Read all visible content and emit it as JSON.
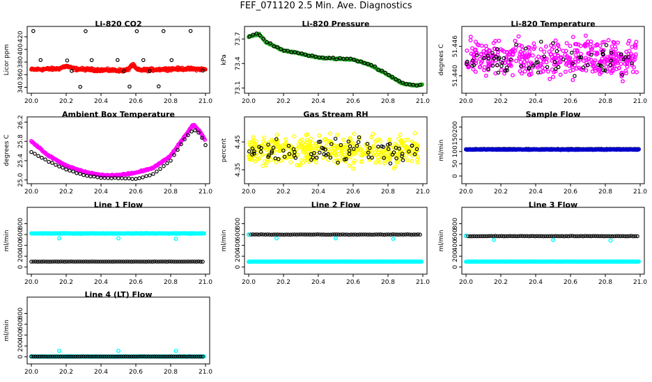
{
  "title": "FEF_071120  2.5 Min. Ave. Diagnostics",
  "x_axis": {
    "range": [
      20.0,
      21.0
    ],
    "ticks": [
      "20.0",
      "20.2",
      "20.4",
      "20.6",
      "20.8",
      "21.0"
    ]
  },
  "chart_data": [
    {
      "id": "co2",
      "type": "scatter",
      "title": "Li-820 CO2",
      "ylabel": "Licor ppm",
      "ylim": [
        335,
        432
      ],
      "yticks": [
        "340",
        "360",
        "380",
        "400",
        "420"
      ],
      "series": [
        {
          "name": "primary",
          "color": "#ff0000",
          "pattern": "band",
          "base": 368,
          "amp": 3,
          "noise": 3,
          "peaks": [
            {
              "x": 20.58,
              "h": 8,
              "w": 0.02
            },
            {
              "x": 20.2,
              "h": 4,
              "w": 0.03
            }
          ]
        },
        {
          "name": "secondary",
          "color": "#000000",
          "pattern": "levels",
          "levels": [
            429,
            383,
            366,
            341
          ],
          "step": 0.075
        }
      ]
    },
    {
      "id": "pressure",
      "type": "scatter",
      "title": "Li-820 Pressure",
      "ylabel": "kPa",
      "ylim": [
        73.07,
        73.82
      ],
      "yticks": [
        "73.1",
        "73.4",
        "73.7"
      ],
      "series": [
        {
          "name": "primary",
          "color": "#22aa22",
          "pattern": "trend",
          "knots": [
            [
              20.0,
              73.73
            ],
            [
              20.06,
              73.76
            ],
            [
              20.1,
              73.66
            ],
            [
              20.2,
              73.56
            ],
            [
              20.3,
              73.52
            ],
            [
              20.4,
              73.47
            ],
            [
              20.5,
              73.46
            ],
            [
              20.6,
              73.45
            ],
            [
              20.7,
              73.38
            ],
            [
              20.8,
              73.26
            ],
            [
              20.88,
              73.16
            ],
            [
              20.95,
              73.13
            ],
            [
              21.0,
              73.14
            ]
          ],
          "noise": 0.01
        },
        {
          "name": "secondary",
          "color": "#000000",
          "pattern": "sparse_trend",
          "step": 0.02,
          "offset": 0.015
        }
      ]
    },
    {
      "id": "licor_temp",
      "type": "scatter",
      "title": "Li-820 Temperature",
      "ylabel": "degrees C",
      "ylim": [
        51.437,
        51.4495
      ],
      "yticks": [
        "51.440",
        "51.446"
      ],
      "series": [
        {
          "name": "primary",
          "color": "#ff00ff",
          "pattern": "noise",
          "center": 51.4435,
          "spread": 0.0055,
          "count": 420
        },
        {
          "name": "secondary",
          "color": "#000000",
          "pattern": "noise",
          "center": 51.4433,
          "spread": 0.0045,
          "count": 70
        }
      ]
    },
    {
      "id": "box_temp",
      "type": "scatter",
      "title": "Ambient Box Temperature",
      "ylabel": "degrees C",
      "ylim": [
        24.98,
        26.25
      ],
      "yticks": [
        "25.0",
        "25.4",
        "25.8",
        "26.2"
      ],
      "series": [
        {
          "name": "primary",
          "color": "#ff00ff",
          "pattern": "trend",
          "knots": [
            [
              20.0,
              25.8
            ],
            [
              20.1,
              25.5
            ],
            [
              20.2,
              25.3
            ],
            [
              20.3,
              25.17
            ],
            [
              20.4,
              25.1
            ],
            [
              20.5,
              25.1
            ],
            [
              20.6,
              25.15
            ],
            [
              20.7,
              25.25
            ],
            [
              20.8,
              25.5
            ],
            [
              20.87,
              25.85
            ],
            [
              20.93,
              26.15
            ],
            [
              20.97,
              26.0
            ],
            [
              21.0,
              25.8
            ]
          ],
          "noise": 0.02
        },
        {
          "name": "secondary",
          "color": "#000000",
          "pattern": "trend",
          "knots": [
            [
              20.0,
              25.58
            ],
            [
              20.1,
              25.38
            ],
            [
              20.2,
              25.22
            ],
            [
              20.3,
              25.1
            ],
            [
              20.4,
              25.04
            ],
            [
              20.5,
              25.04
            ],
            [
              20.6,
              25.02
            ],
            [
              20.7,
              25.12
            ],
            [
              20.8,
              25.4
            ],
            [
              20.87,
              25.8
            ],
            [
              20.93,
              26.05
            ],
            [
              20.97,
              25.95
            ],
            [
              21.0,
              25.72
            ]
          ],
          "noise": 0.01,
          "step": 0.02
        }
      ]
    },
    {
      "id": "rh",
      "type": "scatter",
      "title": "Gas Stream RH",
      "ylabel": "percent",
      "ylim": [
        4.31,
        4.53
      ],
      "yticks": [
        "4.35",
        "4.45"
      ],
      "series": [
        {
          "name": "primary",
          "color": "#ffff00",
          "pattern": "noise",
          "center": 4.42,
          "spread": 0.075,
          "count": 450
        },
        {
          "name": "secondary",
          "color": "#000000",
          "pattern": "noise",
          "center": 4.42,
          "spread": 0.065,
          "count": 80
        }
      ]
    },
    {
      "id": "sample_flow",
      "type": "scatter",
      "title": "Sample Flow",
      "ylabel": "ml/min",
      "ylim": [
        -20,
        230
      ],
      "yticks": [
        "0",
        "50",
        "100",
        "150",
        "200"
      ],
      "series": [
        {
          "name": "primary",
          "color": "#000000",
          "pattern": "flat",
          "value": 110,
          "noise": 2,
          "step": 0.008
        },
        {
          "name": "secondary",
          "color": "#0000cc",
          "pattern": "flat",
          "value": 108,
          "noise": 2,
          "step": 0.004
        }
      ]
    },
    {
      "id": "line1",
      "type": "scatter",
      "title": "Line 1 Flow",
      "ylabel": "ml/min",
      "ylim": [
        -80,
        1050
      ],
      "yticks": [
        "0",
        "200",
        "400",
        "600",
        "800"
      ],
      "series": [
        {
          "name": "primary",
          "color": "#00ffff",
          "pattern": "flat",
          "value": 620,
          "noise": 8,
          "step": 0.004,
          "dips": [
            {
              "x": 20.16,
              "v": 530
            },
            {
              "x": 20.5,
              "v": 530
            },
            {
              "x": 20.83,
              "v": 520
            }
          ]
        },
        {
          "name": "secondary",
          "color": "#000000",
          "pattern": "flat",
          "value": 100,
          "noise": 3,
          "step": 0.012
        }
      ]
    },
    {
      "id": "line2",
      "type": "scatter",
      "title": "Line 2 Flow",
      "ylabel": "ml/min",
      "ylim": [
        -80,
        1050
      ],
      "yticks": [
        "0",
        "200",
        "400",
        "600",
        "800"
      ],
      "series": [
        {
          "name": "primary",
          "color": "#00ffff",
          "pattern": "flat",
          "value": 100,
          "noise": 3,
          "step": 0.004
        },
        {
          "name": "secondary",
          "color": "#000000",
          "pattern": "flat",
          "value": 600,
          "noise": 6,
          "step": 0.012
        },
        {
          "name": "tertiary",
          "color": "#00ffff",
          "pattern": "points",
          "points": [
            [
              20.0,
              600
            ],
            [
              20.16,
              530
            ],
            [
              20.5,
              530
            ],
            [
              20.83,
              520
            ]
          ]
        }
      ]
    },
    {
      "id": "line3",
      "type": "scatter",
      "title": "Line 3 Flow",
      "ylabel": "ml/min",
      "ylim": [
        -80,
        1050
      ],
      "yticks": [
        "0",
        "200",
        "400",
        "600",
        "800"
      ],
      "series": [
        {
          "name": "primary",
          "color": "#00ffff",
          "pattern": "flat",
          "value": 100,
          "noise": 3,
          "step": 0.004
        },
        {
          "name": "secondary",
          "color": "#000000",
          "pattern": "flat",
          "value": 570,
          "noise": 6,
          "step": 0.012
        },
        {
          "name": "tertiary",
          "color": "#00ffff",
          "pattern": "points",
          "points": [
            [
              20.0,
              580
            ],
            [
              20.16,
              500
            ],
            [
              20.5,
              500
            ],
            [
              20.83,
              490
            ]
          ]
        }
      ]
    },
    {
      "id": "line4",
      "type": "scatter",
      "title": "Line 4 (LT) Flow",
      "ylabel": "ml/min",
      "ylim": [
        -80,
        1050
      ],
      "yticks": [
        "0",
        "200",
        "400",
        "600",
        "800"
      ],
      "series": [
        {
          "name": "primary",
          "color": "#00ffff",
          "pattern": "flat",
          "value": 5,
          "noise": 2,
          "step": 0.004
        },
        {
          "name": "secondary",
          "color": "#000000",
          "pattern": "flat",
          "value": 5,
          "noise": 2,
          "step": 0.012
        },
        {
          "name": "tertiary",
          "color": "#00ffff",
          "pattern": "points",
          "points": [
            [
              20.16,
              110
            ],
            [
              20.5,
              110
            ],
            [
              20.83,
              110
            ]
          ]
        }
      ]
    }
  ]
}
